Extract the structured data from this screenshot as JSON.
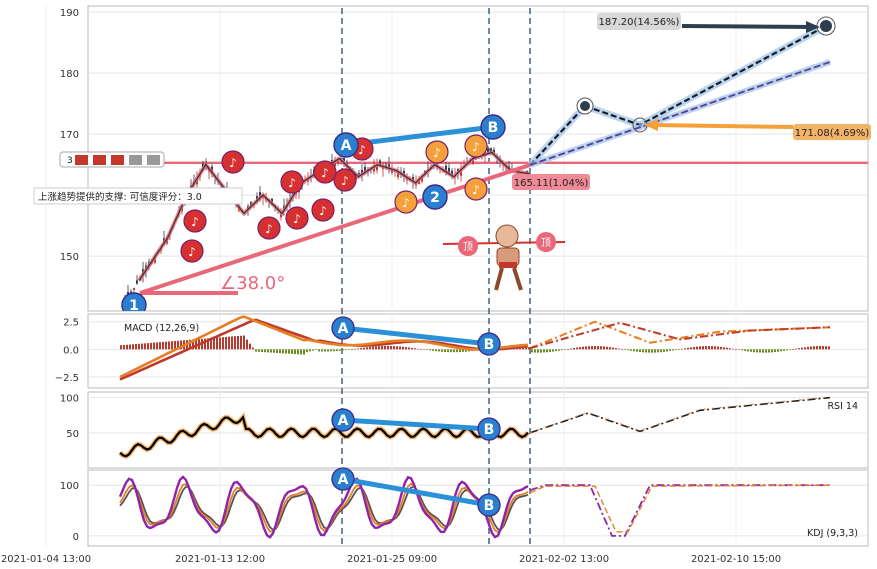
{
  "chart_data": {
    "type": "candlestick",
    "x_ticks": [
      "2021-01-04 13:00",
      "2021-01-13 12:00",
      "2021-01-25 09:00",
      "2021-02-02 13:00",
      "2021-02-10 15:00"
    ],
    "main": {
      "y_ticks": [
        150,
        160,
        170,
        180,
        190
      ],
      "y_tick_labels": [
        "150",
        "",
        "170",
        "180",
        "190"
      ],
      "ylim": [
        141,
        191
      ],
      "resistance_level": 165.3,
      "close_path": [
        [
          0.02,
          146
        ],
        [
          0.05,
          153
        ],
        [
          0.07,
          160
        ],
        [
          0.09,
          165
        ],
        [
          0.11,
          161
        ],
        [
          0.13,
          157
        ],
        [
          0.15,
          160
        ],
        [
          0.17,
          157
        ],
        [
          0.19,
          162
        ],
        [
          0.21,
          164
        ],
        [
          0.23,
          166
        ],
        [
          0.25,
          163
        ],
        [
          0.27,
          165
        ],
        [
          0.29,
          164
        ],
        [
          0.31,
          162
        ],
        [
          0.33,
          165
        ],
        [
          0.35,
          163
        ],
        [
          0.37,
          166
        ],
        [
          0.39,
          167
        ],
        [
          0.41,
          164
        ],
        [
          0.43,
          163.5
        ]
      ],
      "annotations": [
        {
          "text": "187.20(14.56%)",
          "value": 187.2
        },
        {
          "text": "171.08(4.69%)",
          "value": 171.08
        },
        {
          "text": "165.11(1.04%)",
          "value": 165.11
        }
      ],
      "support_note": "上涨趋势提供的支撑: 可信度评分：3.0",
      "angle_label": "∠38.0°",
      "pattern_points": [
        {
          "label": "1",
          "x": 0.02,
          "y": 143
        },
        {
          "label": "A",
          "x": 0.25,
          "y": 168.5
        },
        {
          "label": "2",
          "x": 0.355,
          "y": 160
        },
        {
          "label": "B",
          "x": 0.4,
          "y": 170.5
        }
      ],
      "badge_text": "3",
      "candle_icon_label": "顶"
    },
    "macd": {
      "title": "MACD (12,26,9)",
      "y_ticks": [
        -2.5,
        0.0,
        2.5
      ],
      "y_tick_labels": [
        "−2.5",
        "0.0",
        "2.5"
      ],
      "ylim": [
        -3.5,
        3.2
      ],
      "divergence": [
        {
          "label": "A",
          "value": 2.2
        },
        {
          "label": "B",
          "value": 0.6
        }
      ]
    },
    "rsi": {
      "title": "RSI 14",
      "y_ticks": [
        50,
        100
      ],
      "y_tick_labels": [
        "50",
        "100"
      ],
      "ylim": [
        0,
        108
      ],
      "divergence": [
        {
          "label": "A",
          "value": 72
        },
        {
          "label": "B",
          "value": 64
        }
      ]
    },
    "kdj": {
      "title": "KDJ (9,3,3)",
      "y_ticks": [
        0,
        100
      ],
      "y_tick_labels": [
        "0",
        "100"
      ],
      "ylim": [
        -20,
        130
      ],
      "divergence": [
        {
          "label": "A",
          "value": 120
        },
        {
          "label": "B",
          "value": 60
        }
      ]
    },
    "colors": {
      "up": "#c0392b",
      "down": "#2c3e50",
      "resistance": "#e8687a",
      "macd": "#e67e22",
      "signal": "#c0392b",
      "rsi": "#000000",
      "k": "#e67e22",
      "d": "#555555",
      "j": "#8e24aa",
      "node_blue": "#2a7fcf",
      "node_red": "#d63031",
      "node_orange": "#f5a03a"
    }
  }
}
